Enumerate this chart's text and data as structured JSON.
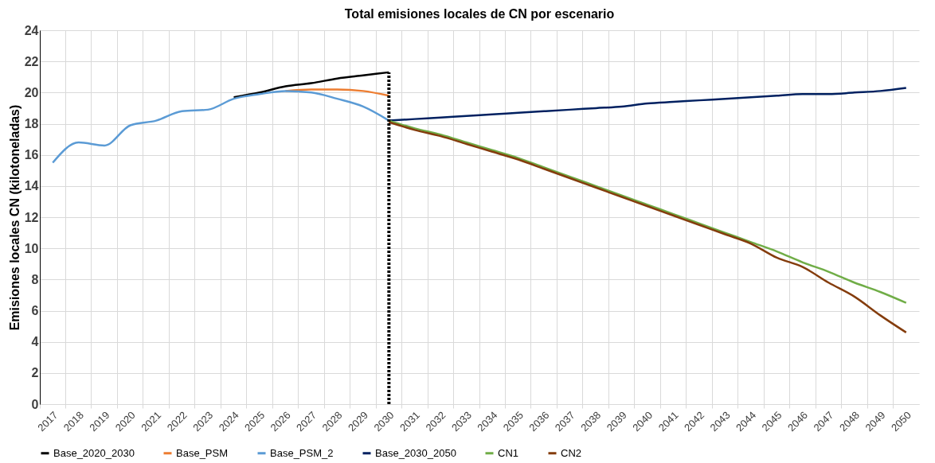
{
  "chart_data": {
    "type": "line",
    "title": "Total emisiones locales de CN por escenario",
    "ylabel": "Emisiones locales CN (kilotoneladas)",
    "categories": [
      "2017",
      "2018",
      "2019",
      "2020",
      "2021",
      "2022",
      "2023",
      "2024",
      "2025",
      "2026",
      "2027",
      "2028",
      "2029",
      "2030",
      "2031",
      "2032",
      "2033",
      "2034",
      "2035",
      "2036",
      "2037",
      "2038",
      "2039",
      "2040",
      "2041",
      "2042",
      "2043",
      "2044",
      "2045",
      "2046",
      "2047",
      "2048",
      "2049",
      "2050"
    ],
    "series": [
      {
        "name": "Base_2020_2030",
        "color": "#000000",
        "values": [
          null,
          null,
          null,
          null,
          null,
          null,
          null,
          19.7,
          20.0,
          20.4,
          20.6,
          20.9,
          21.1,
          21.3,
          null,
          null,
          null,
          null,
          null,
          null,
          null,
          null,
          null,
          null,
          null,
          null,
          null,
          null,
          null,
          null,
          null,
          null,
          null,
          null
        ]
      },
      {
        "name": "Base_PSM",
        "color": "#ed7d31",
        "values": [
          null,
          null,
          null,
          null,
          null,
          null,
          null,
          null,
          null,
          20.1,
          20.2,
          20.2,
          20.1,
          19.8,
          null,
          null,
          null,
          null,
          null,
          null,
          null,
          null,
          null,
          null,
          null,
          null,
          null,
          null,
          null,
          null,
          null,
          null,
          null,
          null
        ]
      },
      {
        "name": "Base_PSM_2",
        "color": "#5b9bd5",
        "values": [
          15.5,
          16.8,
          16.6,
          17.9,
          18.2,
          18.8,
          18.9,
          19.6,
          19.9,
          20.1,
          20.0,
          19.6,
          19.1,
          18.2,
          null,
          null,
          null,
          null,
          null,
          null,
          null,
          null,
          null,
          null,
          null,
          null,
          null,
          null,
          null,
          null,
          null,
          null,
          null,
          null
        ]
      },
      {
        "name": "Base_2030_2050",
        "color": "#002060",
        "values": [
          null,
          null,
          null,
          null,
          null,
          null,
          null,
          null,
          null,
          null,
          null,
          null,
          null,
          18.2,
          18.3,
          18.4,
          18.5,
          18.6,
          18.7,
          18.8,
          18.9,
          19.0,
          19.1,
          19.3,
          19.4,
          19.5,
          19.6,
          19.7,
          19.8,
          19.9,
          19.9,
          20.0,
          20.1,
          20.3
        ]
      },
      {
        "name": "CN1",
        "color": "#70ad47",
        "values": [
          null,
          null,
          null,
          null,
          null,
          null,
          null,
          null,
          null,
          null,
          null,
          null,
          null,
          18.2,
          17.7,
          17.3,
          16.8,
          16.3,
          15.8,
          15.2,
          14.6,
          14.0,
          13.4,
          12.8,
          12.2,
          11.6,
          11.0,
          10.4,
          9.8,
          9.1,
          8.5,
          7.8,
          7.2,
          6.5
        ]
      },
      {
        "name": "CN2",
        "color": "#843c0c",
        "values": [
          null,
          null,
          null,
          null,
          null,
          null,
          null,
          null,
          null,
          null,
          null,
          null,
          null,
          18.1,
          17.6,
          17.2,
          16.7,
          16.2,
          15.7,
          15.1,
          14.5,
          13.9,
          13.3,
          12.7,
          12.1,
          11.5,
          10.9,
          10.3,
          9.4,
          8.8,
          7.8,
          6.9,
          5.7,
          4.6
        ]
      }
    ],
    "ylim": [
      0,
      24
    ],
    "yticks": [
      0,
      2,
      4,
      6,
      8,
      10,
      12,
      14,
      16,
      18,
      20,
      22,
      24
    ],
    "grid": true,
    "legend": "bottom",
    "marker": "none",
    "line_style": "solid",
    "ref_lines": [
      {
        "axis": "x",
        "value": "2030",
        "color": "#000000",
        "line_style": "dotted"
      }
    ]
  }
}
